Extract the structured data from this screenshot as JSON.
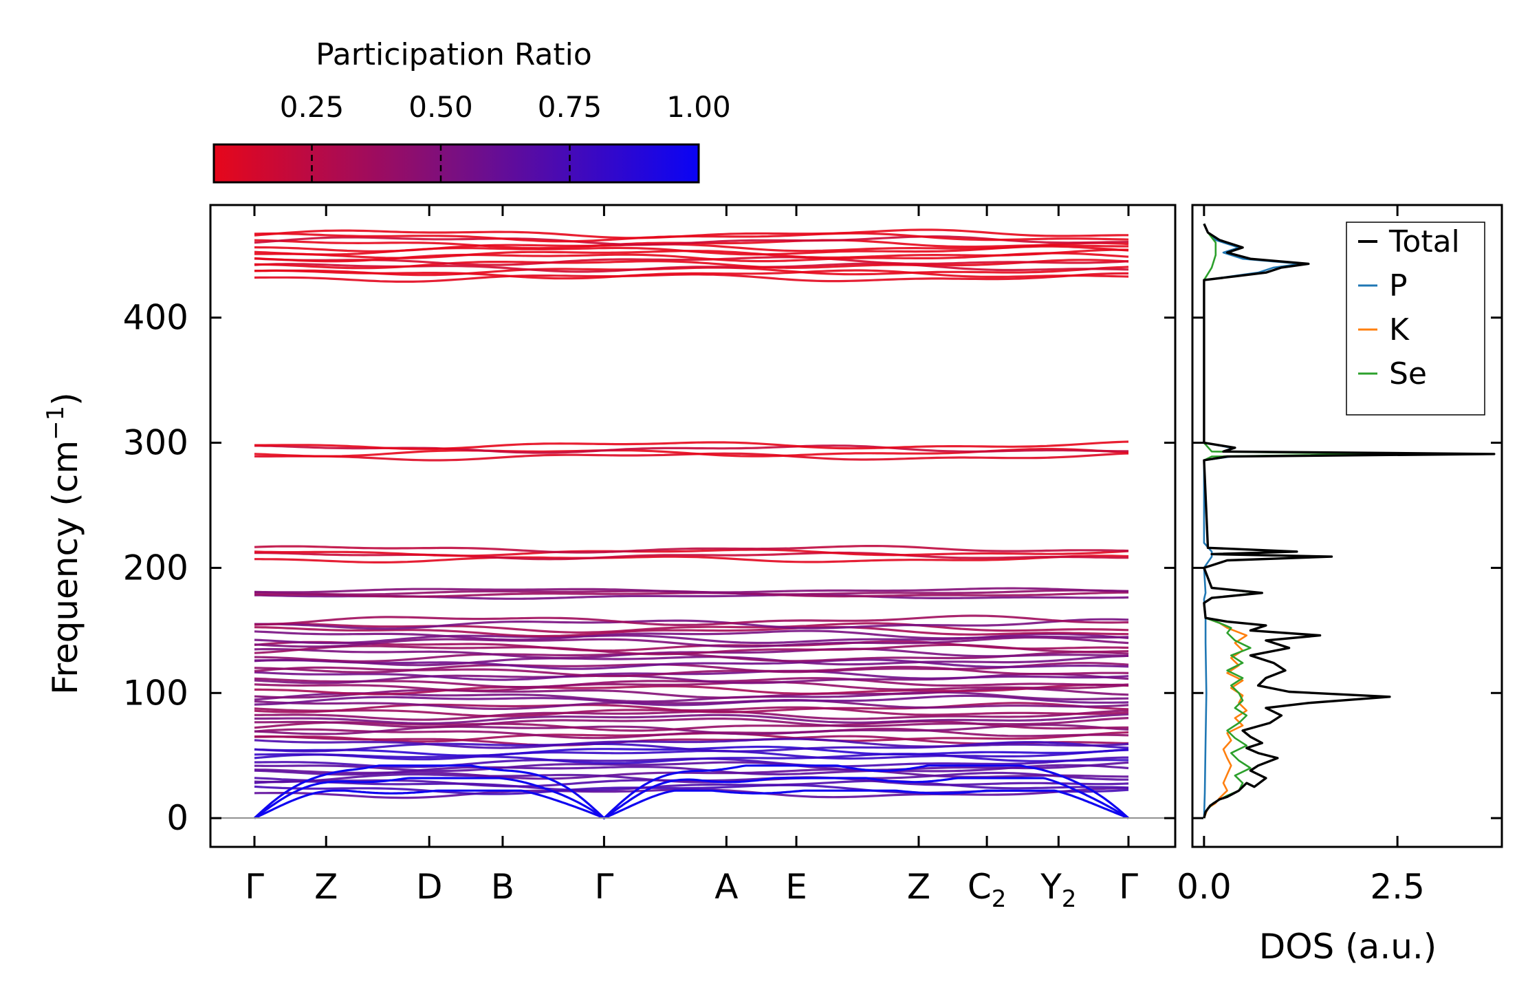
{
  "colors": {
    "pr_low": "#e6071b",
    "pr_high": "#0a04f5",
    "total": "#000000",
    "P": "#1f77b4",
    "K": "#ff7f0e",
    "Se": "#2ca02c",
    "zero_line": "#909090"
  },
  "chart_data": [
    {
      "type": "line",
      "name": "phonon-band-structure",
      "ylabel": "Frequency (cm",
      "ylabel_sup": "−1",
      "ylabel_close": ")",
      "ylim": [
        -23,
        490
      ],
      "yticks": [
        0,
        100,
        200,
        300,
        400
      ],
      "xticks": [
        {
          "base": "Γ",
          "sub": ""
        },
        {
          "base": "Z",
          "sub": ""
        },
        {
          "base": "D",
          "sub": ""
        },
        {
          "base": "B",
          "sub": ""
        },
        {
          "base": "Γ",
          "sub": ""
        },
        {
          "base": "A",
          "sub": ""
        },
        {
          "base": "E",
          "sub": ""
        },
        {
          "base": "Z",
          "sub": ""
        },
        {
          "base": "C",
          "sub": "2"
        },
        {
          "base": "Y",
          "sub": "2"
        },
        {
          "base": "Γ",
          "sub": ""
        }
      ],
      "xtick_positions": [
        0,
        0.082,
        0.2,
        0.284,
        0.4,
        0.54,
        0.62,
        0.76,
        0.838,
        0.92,
        1.0
      ],
      "colorbar": {
        "label": "Participation Ratio",
        "ticks": [
          0.25,
          0.5,
          0.75,
          1.0
        ],
        "tick_labels": [
          "0.25",
          "0.50",
          "0.75",
          "1.00"
        ],
        "range": [
          0.06,
          1.0
        ]
      },
      "band_groups": [
        {
          "range": [
            432,
            467
          ],
          "count": 14,
          "participation": 0.06
        },
        {
          "range": [
            289,
            298
          ],
          "count": 4,
          "participation": 0.08
        },
        {
          "range": [
            207,
            215
          ],
          "count": 4,
          "participation": 0.12
        },
        {
          "range": [
            177,
            182
          ],
          "count": 4,
          "participation": 0.45
        },
        {
          "range": [
            62,
            158
          ],
          "count": 34,
          "participation": 0.45
        },
        {
          "range": [
            20,
            60
          ],
          "count": 14,
          "participation": 0.75
        }
      ],
      "acoustic_branches": 3
    },
    {
      "type": "line",
      "name": "phonon-dos",
      "xlabel": "DOS (a.u.)",
      "xlim": [
        -0.15,
        3.85
      ],
      "xticks": [
        0.0,
        2.5
      ],
      "xtick_labels": [
        "0.0",
        "2.5"
      ],
      "ylim": [
        -23,
        490
      ],
      "legend_position": "top-right",
      "series": [
        {
          "name": "Total",
          "points": [
            [
              0,
              0
            ],
            [
              0.02,
              5
            ],
            [
              0.08,
              10
            ],
            [
              0.2,
              15
            ],
            [
              0.3,
              17
            ],
            [
              0.45,
              22
            ],
            [
              0.55,
              28
            ],
            [
              0.65,
              25
            ],
            [
              0.8,
              32
            ],
            [
              0.6,
              38
            ],
            [
              0.7,
              42
            ],
            [
              0.95,
              48
            ],
            [
              0.7,
              52
            ],
            [
              0.55,
              56
            ],
            [
              0.75,
              60
            ],
            [
              0.6,
              65
            ],
            [
              0.5,
              70
            ],
            [
              0.85,
              76
            ],
            [
              1.0,
              82
            ],
            [
              0.8,
              88
            ],
            [
              1.35,
              92
            ],
            [
              2.4,
              97
            ],
            [
              1.1,
              101
            ],
            [
              0.7,
              106
            ],
            [
              0.8,
              112
            ],
            [
              1.05,
              118
            ],
            [
              0.9,
              124
            ],
            [
              0.6,
              130
            ],
            [
              1.1,
              136
            ],
            [
              0.8,
              142
            ],
            [
              1.5,
              146
            ],
            [
              0.6,
              150
            ],
            [
              0.8,
              154
            ],
            [
              0.3,
              157
            ],
            [
              0.02,
              160
            ],
            [
              0,
              172
            ],
            [
              0.1,
              176
            ],
            [
              0.75,
              180
            ],
            [
              0.1,
              184
            ],
            [
              0,
              200
            ],
            [
              0.3,
              206
            ],
            [
              1.65,
              209
            ],
            [
              0.1,
              211
            ],
            [
              1.2,
              213
            ],
            [
              0.05,
              216
            ],
            [
              0,
              286
            ],
            [
              0.3,
              289
            ],
            [
              3.75,
              291
            ],
            [
              0.25,
              293
            ],
            [
              0.4,
              296
            ],
            [
              0,
              300
            ],
            [
              0,
              430
            ],
            [
              0.4,
              433
            ],
            [
              0.8,
              436
            ],
            [
              1.0,
              440
            ],
            [
              1.35,
              443
            ],
            [
              0.6,
              447
            ],
            [
              0.3,
              452
            ],
            [
              0.5,
              456
            ],
            [
              0.2,
              462
            ],
            [
              0.05,
              468
            ],
            [
              0,
              475
            ]
          ]
        },
        {
          "name": "P",
          "points": [
            [
              0,
              0
            ],
            [
              0.01,
              20
            ],
            [
              0.02,
              60
            ],
            [
              0.03,
              100
            ],
            [
              0.02,
              140
            ],
            [
              0.02,
              160
            ],
            [
              0,
              175
            ],
            [
              0.02,
              180
            ],
            [
              0,
              200
            ],
            [
              0.1,
              209
            ],
            [
              0.1,
              213
            ],
            [
              0,
              220
            ],
            [
              0,
              286
            ],
            [
              0.35,
              289
            ],
            [
              2.4,
              291
            ],
            [
              0.3,
              293
            ],
            [
              0.35,
              296
            ],
            [
              0,
              300
            ],
            [
              0,
              430
            ],
            [
              0.35,
              433
            ],
            [
              0.7,
              436
            ],
            [
              0.9,
              440
            ],
            [
              1.25,
              443
            ],
            [
              0.5,
              447
            ],
            [
              0.25,
              452
            ],
            [
              0.45,
              456
            ],
            [
              0.15,
              462
            ],
            [
              0.05,
              468
            ],
            [
              0,
              475
            ]
          ]
        },
        {
          "name": "K",
          "points": [
            [
              0,
              0
            ],
            [
              0.05,
              8
            ],
            [
              0.15,
              12
            ],
            [
              0.2,
              16
            ],
            [
              0.3,
              22
            ],
            [
              0.25,
              28
            ],
            [
              0.3,
              35
            ],
            [
              0.35,
              42
            ],
            [
              0.3,
              48
            ],
            [
              0.25,
              55
            ],
            [
              0.35,
              62
            ],
            [
              0.3,
              68
            ],
            [
              0.5,
              74
            ],
            [
              0.4,
              80
            ],
            [
              0.55,
              86
            ],
            [
              0.45,
              92
            ],
            [
              0.5,
              98
            ],
            [
              0.35,
              104
            ],
            [
              0.5,
              110
            ],
            [
              0.3,
              116
            ],
            [
              0.45,
              122
            ],
            [
              0.35,
              128
            ],
            [
              0.5,
              134
            ],
            [
              0.4,
              140
            ],
            [
              0.55,
              146
            ],
            [
              0.3,
              152
            ],
            [
              0.2,
              156
            ],
            [
              0.02,
              160
            ],
            [
              0,
              170
            ]
          ]
        },
        {
          "name": "Se",
          "points": [
            [
              0,
              0
            ],
            [
              0.03,
              6
            ],
            [
              0.12,
              12
            ],
            [
              0.3,
              18
            ],
            [
              0.45,
              22
            ],
            [
              0.5,
              28
            ],
            [
              0.4,
              34
            ],
            [
              0.6,
              40
            ],
            [
              0.45,
              46
            ],
            [
              0.35,
              52
            ],
            [
              0.55,
              58
            ],
            [
              0.4,
              64
            ],
            [
              0.3,
              70
            ],
            [
              0.45,
              76
            ],
            [
              0.55,
              82
            ],
            [
              0.4,
              88
            ],
            [
              0.5,
              94
            ],
            [
              0.45,
              100
            ],
            [
              0.35,
              106
            ],
            [
              0.5,
              112
            ],
            [
              0.3,
              118
            ],
            [
              0.5,
              124
            ],
            [
              0.35,
              130
            ],
            [
              0.6,
              136
            ],
            [
              0.4,
              142
            ],
            [
              0.3,
              148
            ],
            [
              0.35,
              152
            ],
            [
              0.2,
              156
            ],
            [
              0.02,
              160
            ],
            [
              0,
              172
            ],
            [
              0.1,
              176
            ],
            [
              0.7,
              180
            ],
            [
              0.1,
              184
            ],
            [
              0,
              200
            ],
            [
              0.3,
              206
            ],
            [
              1.6,
              209
            ],
            [
              0.1,
              211
            ],
            [
              1.15,
              213
            ],
            [
              0.05,
              216
            ],
            [
              0,
              286
            ],
            [
              0.1,
              289
            ],
            [
              2.3,
              291
            ],
            [
              0.1,
              293
            ],
            [
              0,
              300
            ],
            [
              0,
              430
            ],
            [
              0.1,
              440
            ],
            [
              0.15,
              450
            ],
            [
              0.15,
              460
            ],
            [
              0.05,
              468
            ],
            [
              0,
              475
            ]
          ]
        }
      ]
    }
  ]
}
